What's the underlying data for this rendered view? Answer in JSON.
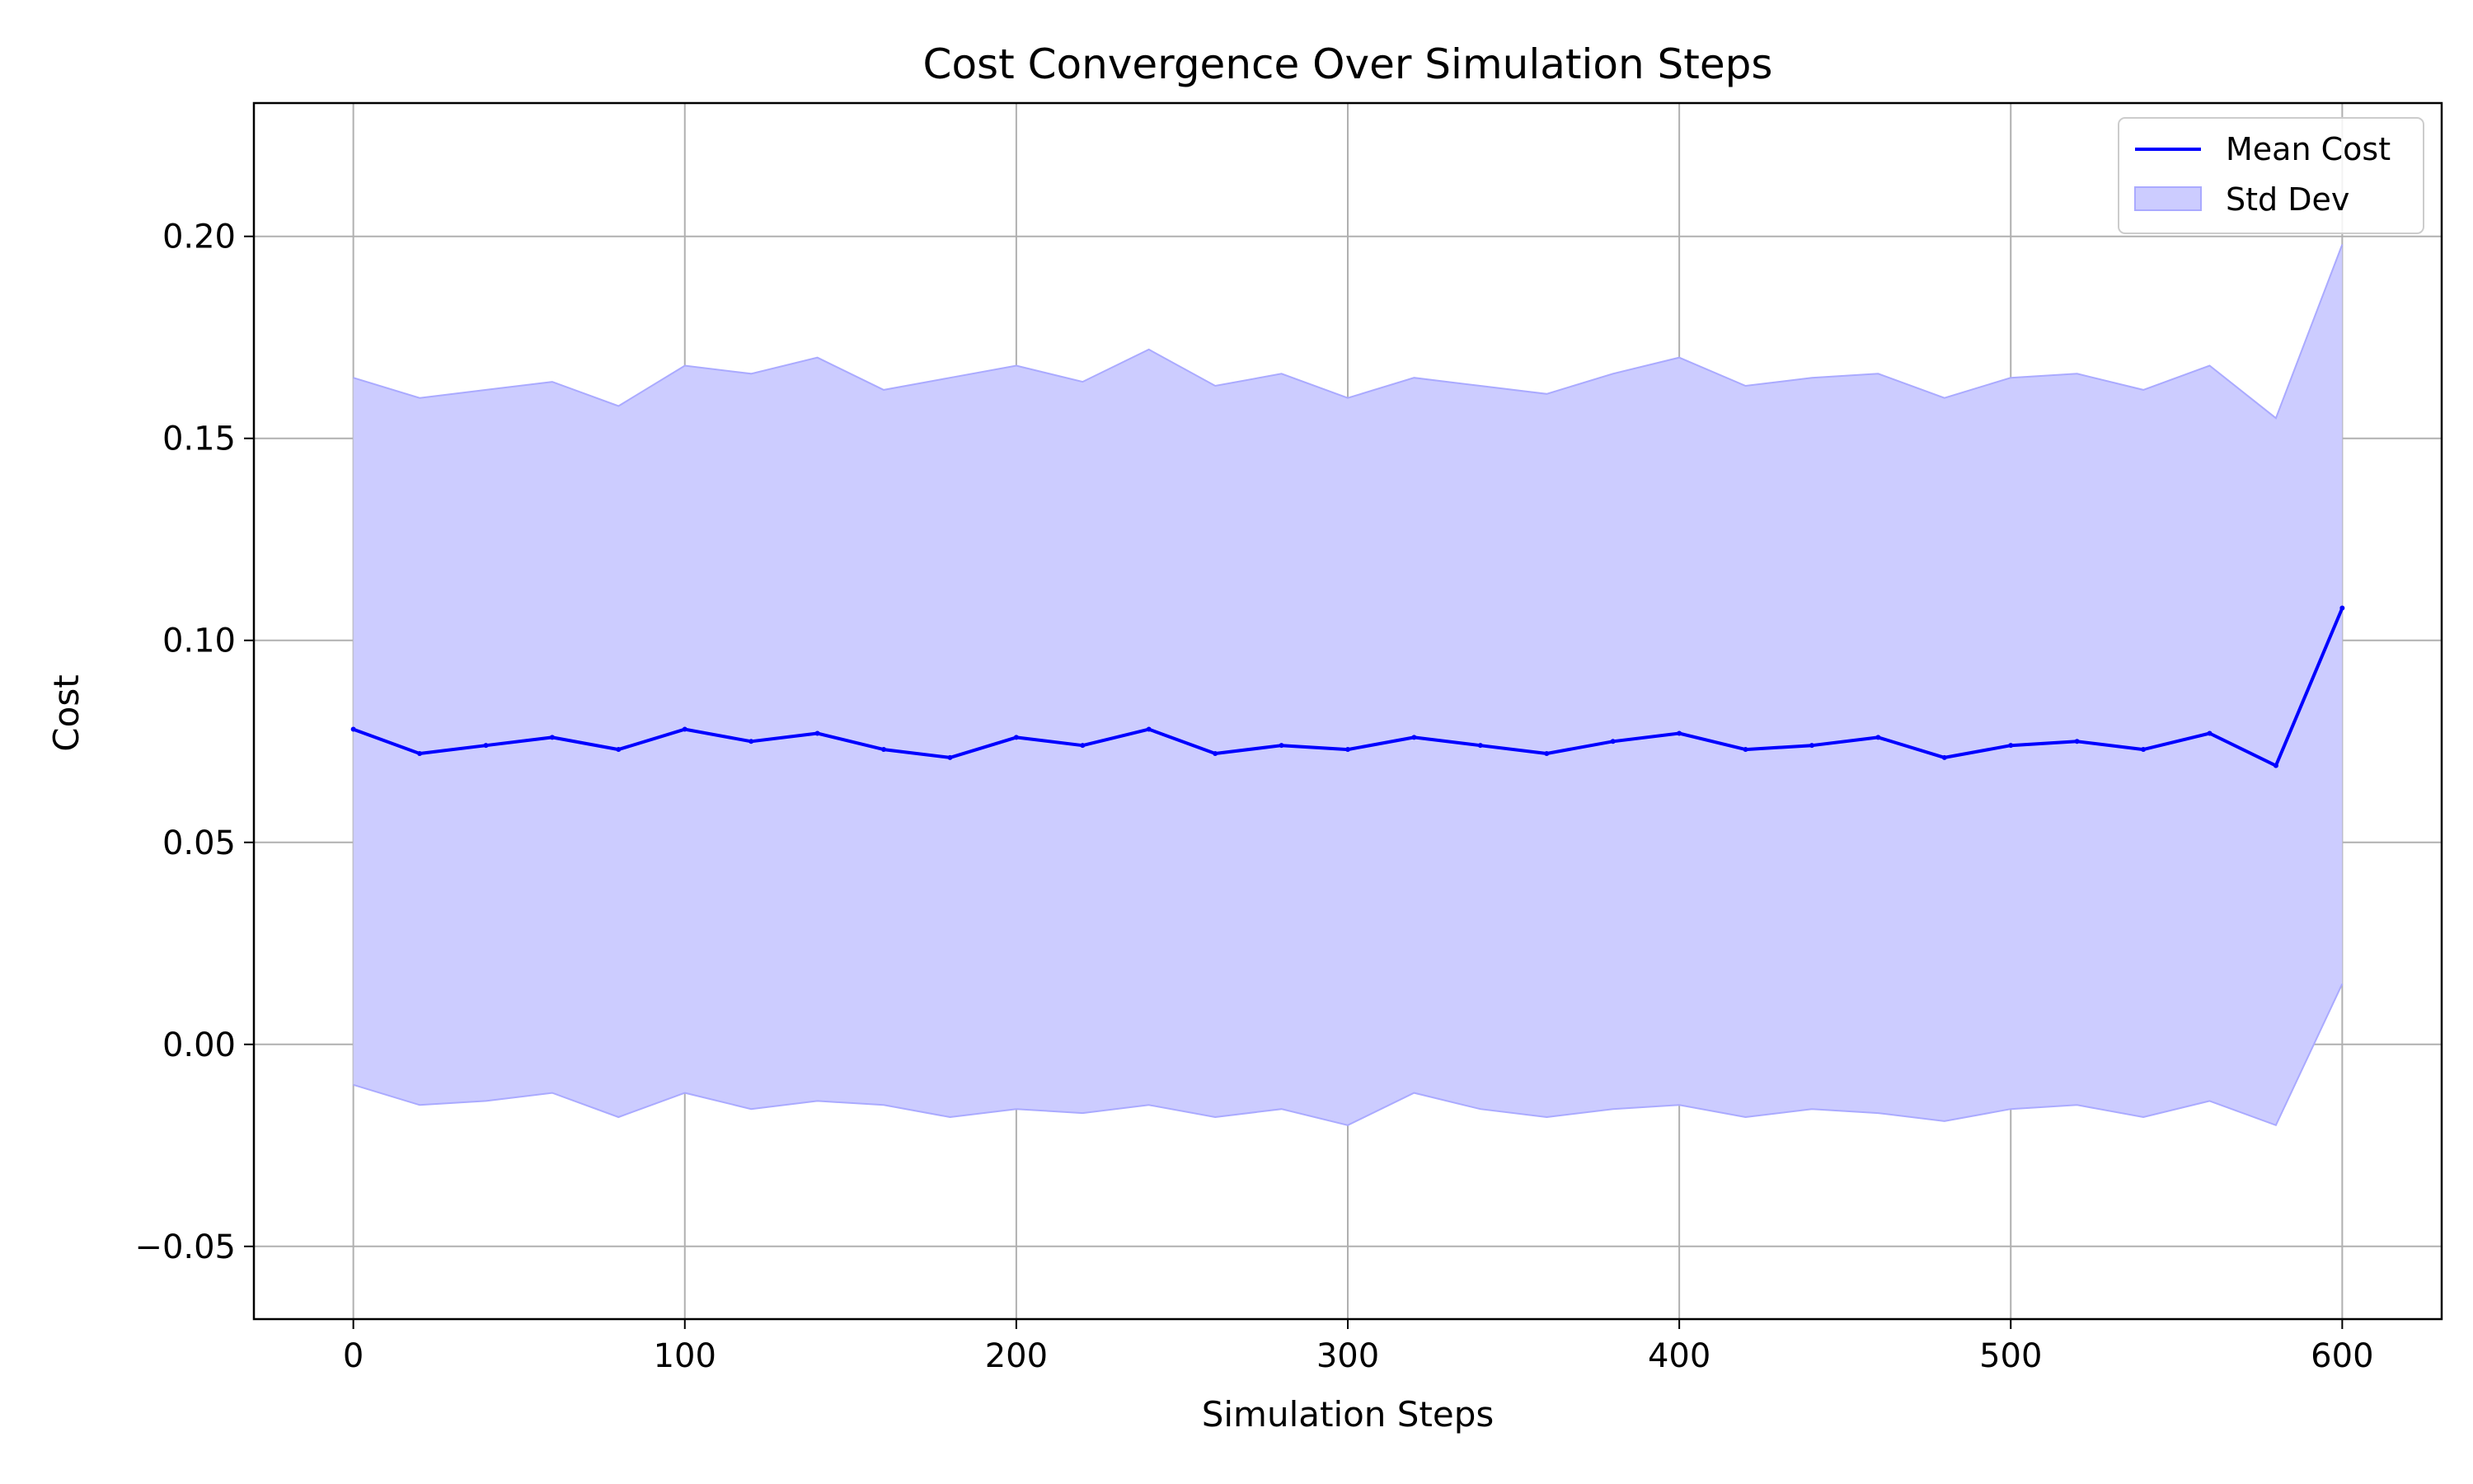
{
  "chart_data": {
    "type": "line",
    "title": "Cost Convergence Over Simulation Steps",
    "xlabel": "Simulation Steps",
    "ylabel": "Cost",
    "xlim": [
      -30,
      630
    ],
    "ylim": [
      -0.068,
      0.233
    ],
    "x_ticks": [
      0,
      100,
      200,
      300,
      400,
      500,
      600
    ],
    "x_tick_labels": [
      "0",
      "100",
      "200",
      "300",
      "400",
      "500",
      "600"
    ],
    "y_ticks": [
      -0.05,
      0.0,
      0.05,
      0.1,
      0.15,
      0.2
    ],
    "y_tick_labels": [
      "−0.05",
      "0.00",
      "0.05",
      "0.10",
      "0.15",
      "0.20"
    ],
    "grid": true,
    "legend": {
      "position": "top-right",
      "entries": [
        "Mean Cost",
        "Std Dev"
      ]
    },
    "colors": {
      "mean_line": "#0000ff",
      "band_fill": "#ccccff",
      "band_edge": "#aaaaff",
      "grid": "#b0b0b0"
    },
    "series": [
      {
        "name": "Mean Cost",
        "role": "mean",
        "x": [
          0,
          20,
          40,
          60,
          80,
          100,
          120,
          140,
          160,
          180,
          200,
          220,
          240,
          260,
          280,
          300,
          320,
          340,
          360,
          380,
          400,
          420,
          440,
          460,
          480,
          500,
          520,
          540,
          560,
          580,
          600
        ],
        "values": [
          0.078,
          0.072,
          0.074,
          0.076,
          0.073,
          0.078,
          0.075,
          0.077,
          0.073,
          0.071,
          0.076,
          0.074,
          0.078,
          0.072,
          0.074,
          0.073,
          0.076,
          0.074,
          0.072,
          0.075,
          0.077,
          0.073,
          0.074,
          0.076,
          0.071,
          0.074,
          0.075,
          0.073,
          0.077,
          0.069,
          0.108
        ]
      },
      {
        "name": "Std Dev",
        "role": "band",
        "x": [
          0,
          20,
          40,
          60,
          80,
          100,
          120,
          140,
          160,
          180,
          200,
          220,
          240,
          260,
          280,
          300,
          320,
          340,
          360,
          380,
          400,
          420,
          440,
          460,
          480,
          500,
          520,
          540,
          560,
          580,
          600
        ],
        "upper": [
          0.165,
          0.16,
          0.162,
          0.164,
          0.158,
          0.168,
          0.166,
          0.17,
          0.162,
          0.165,
          0.168,
          0.164,
          0.172,
          0.163,
          0.166,
          0.16,
          0.165,
          0.163,
          0.161,
          0.166,
          0.17,
          0.163,
          0.165,
          0.166,
          0.16,
          0.165,
          0.166,
          0.162,
          0.168,
          0.155,
          0.198
        ],
        "lower": [
          -0.01,
          -0.015,
          -0.014,
          -0.012,
          -0.018,
          -0.012,
          -0.016,
          -0.014,
          -0.015,
          -0.018,
          -0.016,
          -0.017,
          -0.015,
          -0.018,
          -0.016,
          -0.02,
          -0.012,
          -0.016,
          -0.018,
          -0.016,
          -0.015,
          -0.018,
          -0.016,
          -0.017,
          -0.019,
          -0.016,
          -0.015,
          -0.018,
          -0.014,
          -0.02,
          0.015
        ]
      }
    ]
  }
}
